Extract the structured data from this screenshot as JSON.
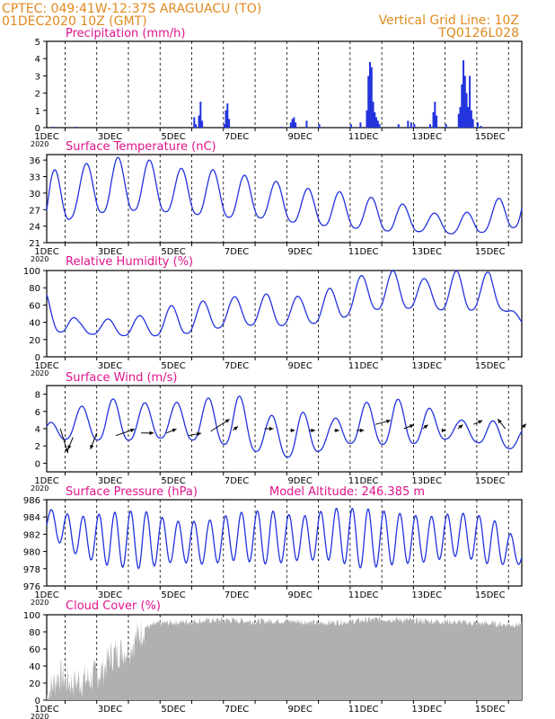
{
  "header": {
    "station": "CPTEC:   049:41W-12:37S   ARAGUACU (TO)",
    "run": "01DEC2020 10Z (GMT)",
    "grid_note": "Vertical Grid Line: 10Z",
    "model": "TQ0126L028"
  },
  "colors": {
    "header": "#e08a1e",
    "title": "#e0148c",
    "series": "#2233dd",
    "cloud": "#b0b0b0",
    "grid": "#000000"
  },
  "chart_data": [
    {
      "type": "bar",
      "title": "Precipitation (mm/h)",
      "x_tick_labels": [
        "1DEC",
        "3DEC",
        "5DEC",
        "7DEC",
        "9DEC",
        "11DEC",
        "13DEC",
        "15DEC"
      ],
      "year_label": "2020",
      "xlim": [
        1.42,
        16.42
      ],
      "ylim": [
        0,
        5
      ],
      "yticks": [
        0,
        1,
        2,
        3,
        4,
        5
      ],
      "grid": true,
      "vertical_grid": "dashed",
      "events": [
        [
          1.6,
          0.05
        ],
        [
          2.3,
          0.05
        ],
        [
          6.05,
          0.6
        ],
        [
          6.1,
          0.2
        ],
        [
          6.2,
          0.7
        ],
        [
          6.25,
          1.5
        ],
        [
          6.3,
          0.4
        ],
        [
          7.0,
          0.2
        ],
        [
          7.05,
          1.0
        ],
        [
          7.1,
          1.4
        ],
        [
          7.15,
          0.5
        ],
        [
          8.8,
          0.05
        ],
        [
          9.1,
          0.3
        ],
        [
          9.15,
          0.5
        ],
        [
          9.2,
          0.6
        ],
        [
          9.25,
          0.3
        ],
        [
          9.6,
          0.4
        ],
        [
          10.0,
          0.2
        ],
        [
          11.0,
          0.2
        ],
        [
          11.3,
          0.3
        ],
        [
          11.5,
          1.0
        ],
        [
          11.55,
          3.0
        ],
        [
          11.6,
          3.8
        ],
        [
          11.65,
          3.5
        ],
        [
          11.7,
          1.5
        ],
        [
          11.75,
          0.9
        ],
        [
          11.8,
          0.6
        ],
        [
          11.85,
          0.4
        ],
        [
          11.9,
          0.2
        ],
        [
          12.5,
          0.2
        ],
        [
          12.8,
          0.4
        ],
        [
          12.9,
          0.3
        ],
        [
          13.0,
          0.2
        ],
        [
          13.5,
          0.2
        ],
        [
          13.6,
          0.9
        ],
        [
          13.65,
          1.5
        ],
        [
          13.7,
          0.7
        ],
        [
          14.0,
          0.2
        ],
        [
          14.4,
          0.8
        ],
        [
          14.45,
          1.2
        ],
        [
          14.5,
          2.5
        ],
        [
          14.55,
          3.9
        ],
        [
          14.6,
          3.0
        ],
        [
          14.65,
          2.0
        ],
        [
          14.7,
          1.2
        ],
        [
          14.75,
          3.0
        ],
        [
          14.8,
          1.0
        ],
        [
          14.85,
          0.5
        ],
        [
          15.0,
          0.3
        ],
        [
          15.1,
          0.1
        ]
      ]
    },
    {
      "type": "line",
      "title": "Surface Temperature (nC)",
      "x_tick_labels": [
        "1DEC",
        "3DEC",
        "5DEC",
        "7DEC",
        "9DEC",
        "11DEC",
        "13DEC",
        "15DEC"
      ],
      "year_label": "2020",
      "xlim": [
        1.42,
        16.42
      ],
      "ylim": [
        21,
        37
      ],
      "yticks": [
        21,
        24,
        27,
        30,
        33,
        36
      ],
      "grid": true,
      "vertical_grid": "dashed",
      "series": [
        {
          "diurnal": true,
          "day_start": 1.42,
          "days": 15,
          "mins": [
            22.0,
            26.5,
            26.5,
            27.0,
            26.5,
            26.0,
            25.5,
            25.5,
            24.5,
            24.0,
            23.5,
            23.0,
            23.0,
            22.5,
            23.0,
            24.0
          ],
          "maxs": [
            34.0,
            35.0,
            36.5,
            36.5,
            34.5,
            34.5,
            33.5,
            32.5,
            31.0,
            30.5,
            29.5,
            28.5,
            26.5,
            26.0,
            28.0,
            32.0
          ],
          "min_phase": 0.93,
          "max_phase": 0.25
        }
      ]
    },
    {
      "type": "line",
      "title": "Relative Humidity (%)",
      "x_tick_labels": [
        "1DEC",
        "3DEC",
        "5DEC",
        "7DEC",
        "9DEC",
        "11DEC",
        "13DEC",
        "15DEC"
      ],
      "year_label": "2020",
      "xlim": [
        1.42,
        16.42
      ],
      "ylim": [
        0,
        100
      ],
      "yticks": [
        0,
        20,
        40,
        60,
        80,
        100
      ],
      "grid": true,
      "vertical_grid": "dashed",
      "series": [
        {
          "diurnal": true,
          "day_start": 1.42,
          "days": 15,
          "mins": [
            30,
            27,
            25,
            24,
            25,
            30,
            38,
            35,
            38,
            40,
            55,
            55,
            58,
            50,
            60,
            45
          ],
          "maxs": [
            75,
            42,
            44,
            48,
            60,
            65,
            70,
            73,
            70,
            80,
            95,
            100,
            90,
            100,
            98,
            40
          ],
          "min_phase": 0.25,
          "max_phase": 0.93
        }
      ]
    },
    {
      "type": "line",
      "title": "Surface Wind (m/s)",
      "x_tick_labels": [
        "1DEC",
        "3DEC",
        "5DEC",
        "7DEC",
        "9DEC",
        "11DEC",
        "13DEC",
        "15DEC"
      ],
      "year_label": "2020",
      "xlim": [
        1.42,
        16.42
      ],
      "ylim": [
        -1,
        9
      ],
      "yticks": [
        0,
        2,
        4,
        6,
        8
      ],
      "grid": true,
      "vertical_grid": "dashed",
      "series": [
        {
          "diurnal": true,
          "day_start": 1.42,
          "days": 15,
          "mins": [
            2.5,
            3.0,
            2.5,
            2.8,
            3.0,
            2.5,
            2.0,
            1.0,
            0.5,
            2.0,
            2.5,
            2.0,
            2.5,
            3.0,
            2.0,
            1.5
          ],
          "maxs": [
            4.5,
            6.5,
            7.5,
            7.0,
            7.0,
            7.5,
            8.0,
            5.5,
            6.0,
            5.0,
            7.0,
            7.5,
            6.5,
            5.0,
            5.0,
            4.0
          ],
          "min_phase": 0.55,
          "max_phase": 0.1
        }
      ],
      "arrows": [
        [
          1.85,
          4.0,
          0.6,
          -3.0
        ],
        [
          2.25,
          3.0,
          -0.4,
          -1.5
        ],
        [
          3.0,
          3.5,
          -0.5,
          -2.0
        ],
        [
          3.6,
          3.2,
          1.5,
          0.8
        ],
        [
          4.4,
          3.5,
          1.0,
          0.0
        ],
        [
          5.2,
          3.5,
          0.8,
          0.5
        ],
        [
          5.9,
          3.2,
          1.0,
          0.3
        ],
        [
          6.6,
          3.7,
          1.5,
          1.5
        ],
        [
          7.3,
          3.8,
          0.4,
          0.5
        ],
        [
          8.3,
          4.0,
          0.7,
          0.0
        ],
        [
          9.1,
          3.8,
          0.4,
          0.0
        ],
        [
          9.7,
          3.8,
          0.5,
          0.0
        ],
        [
          10.5,
          3.8,
          0.4,
          0.0
        ],
        [
          11.2,
          3.8,
          0.6,
          0.0
        ],
        [
          11.8,
          4.5,
          1.2,
          0.5
        ],
        [
          12.7,
          4.0,
          0.8,
          0.5
        ],
        [
          13.3,
          4.0,
          0.4,
          0.5
        ],
        [
          13.9,
          3.8,
          0.3,
          0.0
        ],
        [
          14.4,
          4.0,
          0.4,
          0.5
        ],
        [
          14.9,
          4.5,
          0.7,
          0.5
        ],
        [
          15.9,
          4.0,
          -0.6,
          1.2
        ],
        [
          16.4,
          4.0,
          0.4,
          0.6
        ]
      ]
    },
    {
      "type": "line",
      "title": "Surface Pressure (hPa)",
      "annotation": "Model Altitude: 246.385  m",
      "x_tick_labels": [
        "1DEC",
        "3DEC",
        "5DEC",
        "7DEC",
        "9DEC",
        "11DEC",
        "13DEC",
        "15DEC"
      ],
      "year_label": "2020",
      "xlim": [
        1.42,
        16.42
      ],
      "ylim": [
        976,
        986
      ],
      "yticks": [
        976,
        978,
        980,
        982,
        984,
        986
      ],
      "grid": true,
      "vertical_grid": "dashed",
      "series": [
        {
          "semidiurnal": true,
          "day_start": 1.42,
          "days": 15,
          "mins": [
            982.0,
            979.5,
            978.3,
            978.0,
            978.8,
            978.5,
            979.0,
            978.5,
            979.0,
            979.0,
            978.0,
            978.5,
            978.8,
            979.5,
            978.5,
            978.5
          ],
          "maxs": [
            985.0,
            984.0,
            984.5,
            984.8,
            983.5,
            983.5,
            984.5,
            984.8,
            984.0,
            985.0,
            985.0,
            984.5,
            984.0,
            984.5,
            984.0,
            981.0
          ]
        }
      ]
    },
    {
      "type": "area",
      "title": "Cloud Cover (%)",
      "x_tick_labels": [
        "1DEC",
        "3DEC",
        "5DEC",
        "7DEC",
        "9DEC",
        "11DEC",
        "13DEC",
        "15DEC"
      ],
      "year_label": "2020",
      "xlim": [
        1.42,
        16.42
      ],
      "ylim": [
        0,
        100
      ],
      "yticks": [
        0,
        20,
        40,
        60,
        80,
        100
      ],
      "grid": true,
      "vertical_grid": "dashed",
      "levels": [
        [
          1.42,
          5
        ],
        [
          1.8,
          30
        ],
        [
          2.2,
          20
        ],
        [
          2.8,
          25
        ],
        [
          3.2,
          35
        ],
        [
          3.4,
          50
        ],
        [
          3.6,
          55
        ],
        [
          4.0,
          60
        ],
        [
          4.5,
          85
        ],
        [
          5.0,
          90
        ],
        [
          6.0,
          92
        ],
        [
          7.0,
          94
        ],
        [
          8.0,
          92
        ],
        [
          9.0,
          93
        ],
        [
          10.0,
          90
        ],
        [
          11.0,
          92
        ],
        [
          12.0,
          95
        ],
        [
          13.0,
          93
        ],
        [
          14.0,
          92
        ],
        [
          15.0,
          90
        ],
        [
          16.42,
          88
        ]
      ]
    }
  ]
}
